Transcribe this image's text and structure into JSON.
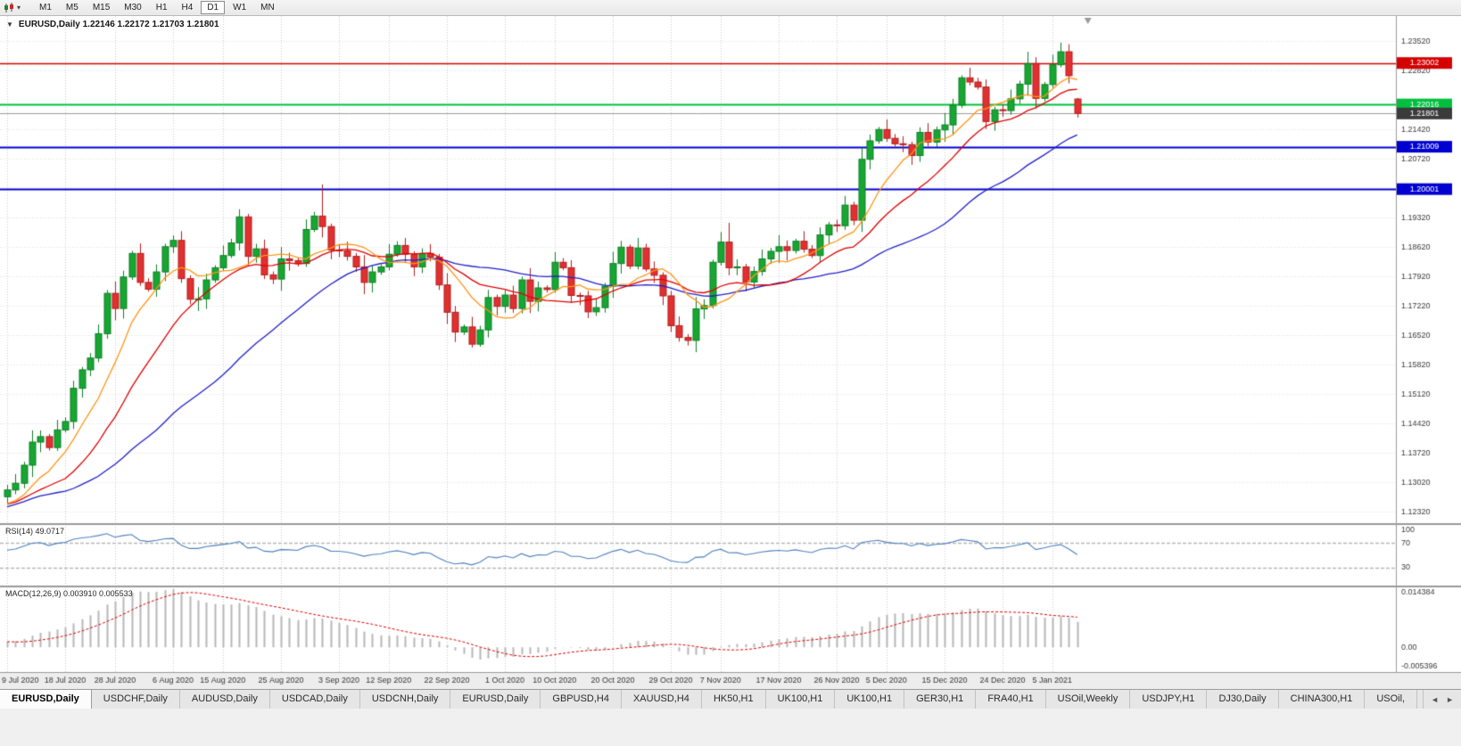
{
  "toolbar": {
    "dropdown_glyph": "▾",
    "timeframes": [
      "M1",
      "M5",
      "M15",
      "M30",
      "H1",
      "H4",
      "D1",
      "W1",
      "MN"
    ],
    "active_timeframe": "D1"
  },
  "chart_header": {
    "collapse_glyph": "▼",
    "readout": "EURUSD,Daily 1.22146 1.22172 1.21703 1.21801"
  },
  "indicators": {
    "rsi_label": "RSI(14) 49.0717",
    "macd_label": "MACD(12,26,9) 0.003910 0.005533"
  },
  "chart_data": {
    "type": "candlestick",
    "symbol": "EURUSD",
    "timeframe": "Daily",
    "ohlc_readout": {
      "open": "1.22146",
      "high": "1.22172",
      "low": "1.21703",
      "close": "1.21801"
    },
    "price_axis": {
      "min": 1.1205,
      "max": 1.2412,
      "decimals": 5,
      "grid_labels": [
        1.2352,
        1.2282,
        1.2142,
        1.2072,
        1.1932,
        1.1862,
        1.1792,
        1.1722,
        1.1652,
        1.1582,
        1.1512,
        1.1442,
        1.1372,
        1.1302,
        1.1232
      ]
    },
    "levels": [
      {
        "price": 1.23002,
        "label": "1.23002",
        "color": "#d40000",
        "width": 1.3
      },
      {
        "price": 1.22016,
        "label": "1.22016",
        "color": "#00bf3e",
        "width": 2
      },
      {
        "price": 1.21801,
        "label": "1.21801",
        "color": "#9a9a9a",
        "tag_bg": "#3b3b3b",
        "width": 1
      },
      {
        "price": 1.21009,
        "label": "1.21009",
        "color": "#0000d0",
        "width": 2
      },
      {
        "price": 1.20001,
        "label": "1.20001",
        "color": "#0000d0",
        "width": 2
      }
    ],
    "x_axis": {
      "labels": [
        "9 Jul 2020",
        "18 Jul 2020",
        "28 Jul 2020",
        "6 Aug 2020",
        "15 Aug 2020",
        "25 Aug 2020",
        "3 Sep 2020",
        "12 Sep 2020",
        "22 Sep 2020",
        "1 Oct 2020",
        "10 Oct 2020",
        "20 Oct 2020",
        "29 Oct 2020",
        "7 Nov 2020",
        "17 Nov 2020",
        "26 Nov 2020",
        "5 Dec 2020",
        "15 Dec 2020",
        "24 Dec 2020",
        "5 Jan 2021"
      ],
      "indices": [
        0,
        7,
        13,
        20,
        26,
        33,
        40,
        46,
        53,
        60,
        66,
        73,
        80,
        86,
        93,
        100,
        106,
        113,
        120,
        126
      ]
    },
    "candles": {
      "first_open": 1.1268,
      "closes": [
        1.1284,
        1.13,
        1.1343,
        1.1398,
        1.1411,
        1.1385,
        1.1427,
        1.1447,
        1.1526,
        1.157,
        1.1598,
        1.1656,
        1.1752,
        1.1716,
        1.1791,
        1.1847,
        1.1778,
        1.1762,
        1.1803,
        1.1863,
        1.1878,
        1.1787,
        1.1738,
        1.1739,
        1.1784,
        1.1813,
        1.1842,
        1.1872,
        1.1934,
        1.184,
        1.1858,
        1.1796,
        1.1786,
        1.1834,
        1.183,
        1.1823,
        1.1904,
        1.1936,
        1.1911,
        1.1855,
        1.1853,
        1.184,
        1.1815,
        1.1778,
        1.1803,
        1.1815,
        1.1845,
        1.1866,
        1.1845,
        1.1815,
        1.1847,
        1.1838,
        1.1772,
        1.1707,
        1.166,
        1.1672,
        1.1631,
        1.1665,
        1.1742,
        1.1721,
        1.1748,
        1.1716,
        1.1784,
        1.1733,
        1.1765,
        1.1761,
        1.1826,
        1.1813,
        1.1747,
        1.1746,
        1.1708,
        1.1718,
        1.1769,
        1.1823,
        1.1862,
        1.1817,
        1.186,
        1.181,
        1.1795,
        1.1746,
        1.1675,
        1.1647,
        1.164,
        1.1715,
        1.1723,
        1.1826,
        1.1874,
        1.1813,
        1.1815,
        1.1779,
        1.1804,
        1.1834,
        1.1852,
        1.1863,
        1.1854,
        1.1876,
        1.1857,
        1.1842,
        1.1891,
        1.1915,
        1.1913,
        1.1962,
        1.1926,
        1.2071,
        1.2115,
        1.2142,
        1.2121,
        1.2108,
        1.2106,
        1.208,
        1.2135,
        1.2112,
        1.2141,
        1.2153,
        1.22,
        1.2265,
        1.2255,
        1.2243,
        1.2161,
        1.2189,
        1.2187,
        1.2215,
        1.225,
        1.2299,
        1.2216,
        1.2249,
        1.2296,
        1.2327,
        1.227,
        1.218
      ],
      "wick_pattern": [
        0.0012,
        0.0022,
        0.0008,
        0.0028,
        0.0015,
        0.0006,
        0.0024,
        0.001,
        0.0018,
        0.0007
      ],
      "wick_overrides": {
        "38": {
          "h": 1.2011,
          "l": 1.1885
        },
        "87": {
          "h": 1.192,
          "l": 1.1795
        },
        "127": {
          "h": 1.2349
        }
      },
      "last_candle": {
        "o": 1.22146,
        "h": 1.22172,
        "l": 1.21703,
        "c": 1.21801
      }
    },
    "prehistory_closes": [
      1.1132,
      1.1118,
      1.1102,
      1.1124,
      1.1148,
      1.1192,
      1.1252,
      1.1296,
      1.1332,
      1.1298,
      1.1258,
      1.1272,
      1.1302,
      1.1262,
      1.1246,
      1.124,
      1.1216,
      1.1232,
      1.1262,
      1.1252,
      1.1222,
      1.1192,
      1.1232,
      1.1252,
      1.1246,
      1.1282,
      1.1312,
      1.1254,
      1.1242,
      1.1236,
      1.1226,
      1.1248,
      1.1272,
      1.1236,
      1.1268
    ],
    "moving_averages": [
      {
        "type": "sma",
        "period": 34,
        "color": "#2020c8"
      },
      {
        "type": "sma",
        "period": 16,
        "color": "#e00000"
      },
      {
        "type": "sma",
        "period": 8,
        "color": "#ff9515"
      }
    ],
    "rsi": {
      "period": 14,
      "value": "49.0717",
      "color": "#4c7fbe",
      "levels": [
        70,
        30
      ],
      "axis_labels": [
        "100",
        "70",
        "30"
      ]
    },
    "macd": {
      "fast": 12,
      "slow": 26,
      "signal": 9,
      "main_value": "0.003910",
      "signal_value": "0.005533",
      "bar_color": "#b6b6b6",
      "signal_color": "#e00000",
      "axis_labels": [
        "0.014384",
        "0.00",
        "-0.005396"
      ],
      "range": [
        -0.0062,
        0.015
      ]
    },
    "colors": {
      "background": "#ffffff",
      "bull": "#17a632",
      "bull_border": "#0d7f24",
      "bear": "#e03030",
      "bear_border": "#b31d1d",
      "axis_text": "#3a3a3a"
    },
    "shift_marker_color": "#999999"
  },
  "tabs": {
    "items": [
      "EURUSD,Daily",
      "USDCHF,Daily",
      "AUDUSD,Daily",
      "USDCAD,Daily",
      "USDCNH,Daily",
      "EURUSD,Daily",
      "GBPUSD,H4",
      "XAUUSD,H4",
      "HK50,H1",
      "UK100,H1",
      "UK100,H1",
      "GER30,H1",
      "FRA40,H1",
      "USOil,Weekly",
      "USDJPY,H1",
      "DJ30,Daily",
      "CHINA300,H1",
      "USOil,"
    ],
    "active_index": 0,
    "scroll_left_glyph": "◄",
    "scroll_right_glyph": "►"
  }
}
